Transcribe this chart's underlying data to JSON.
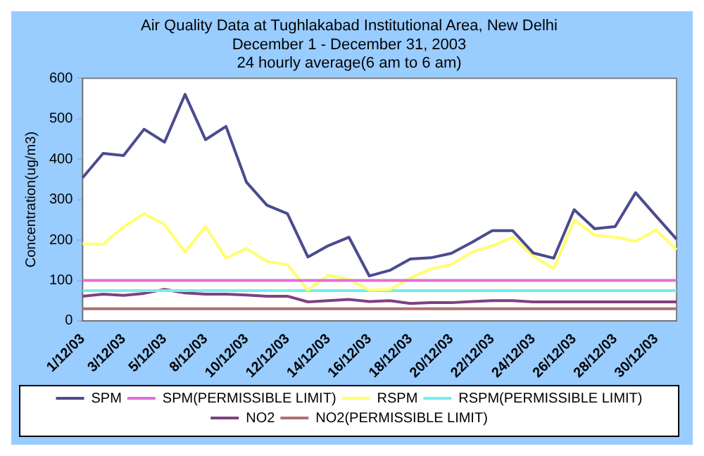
{
  "chart_data": {
    "type": "line",
    "title": "Air Quality Data at Tughlakabad Institutional Area, New Delhi",
    "subtitle": "December 1 - December 31, 2003\n24 hourly average(6 am to 6 am)",
    "ylabel": "Concentration(ug/m3)",
    "categories": [
      "1/12/03",
      null,
      "3/12/03",
      null,
      "5/12/03",
      null,
      "8/12/03",
      null,
      "10/12/03",
      null,
      "12/12/03",
      null,
      "14/12/03",
      null,
      "16/12/03",
      null,
      "18/12/03",
      null,
      "20/12/03",
      null,
      "22/12/03",
      null,
      "24/12/03",
      null,
      "26/12/03",
      null,
      "28/12/03",
      null,
      "30/12/03",
      null
    ],
    "series": [
      {
        "name": "SPM",
        "color": "#4b4b8f",
        "values": [
          354,
          414,
          409,
          474,
          442,
          560,
          448,
          481,
          343,
          286,
          265,
          158,
          186,
          207,
          111,
          125,
          153,
          156,
          167,
          194,
          223,
          223,
          168,
          155,
          275,
          228,
          233,
          317,
          259,
          202
        ]
      },
      {
        "name": "SPM(PERMISSIBLE LIMIT)",
        "color": "#e070d8",
        "values": [
          100,
          100,
          100,
          100,
          100,
          100,
          100,
          100,
          100,
          100,
          100,
          100,
          100,
          100,
          100,
          100,
          100,
          100,
          100,
          100,
          100,
          100,
          100,
          100,
          100,
          100,
          100,
          100,
          100,
          100
        ]
      },
      {
        "name": "RSPM",
        "color": "#ffff70",
        "values": [
          191,
          189,
          233,
          265,
          238,
          170,
          233,
          155,
          179,
          147,
          139,
          76,
          113,
          103,
          76,
          78,
          106,
          129,
          139,
          170,
          186,
          207,
          160,
          129,
          249,
          212,
          207,
          197,
          225,
          176
        ]
      },
      {
        "name": "RSPM(PERMISSIBLE LIMIT)",
        "color": "#70f0f0",
        "values": [
          75,
          75,
          75,
          75,
          75,
          75,
          75,
          75,
          75,
          75,
          75,
          75,
          75,
          75,
          75,
          75,
          75,
          75,
          75,
          75,
          75,
          75,
          75,
          75,
          75,
          75,
          75,
          75,
          75,
          75
        ]
      },
      {
        "name": "NO2",
        "color": "#804080",
        "values": [
          61,
          66,
          63,
          68,
          78,
          69,
          66,
          66,
          64,
          61,
          61,
          47,
          50,
          53,
          48,
          50,
          43,
          45,
          45,
          48,
          50,
          50,
          47,
          47,
          47,
          47,
          47,
          47,
          47,
          47
        ]
      },
      {
        "name": "NO2(PERMISSIBLE LIMIT)",
        "color": "#b07070",
        "values": [
          30,
          30,
          30,
          30,
          30,
          30,
          30,
          30,
          30,
          30,
          30,
          30,
          30,
          30,
          30,
          30,
          30,
          30,
          30,
          30,
          30,
          30,
          30,
          30,
          30,
          30,
          30,
          30,
          30,
          30
        ]
      }
    ],
    "ylim": [
      0,
      600
    ],
    "yticks": [
      0,
      100,
      200,
      300,
      400,
      500,
      600
    ],
    "grid": false,
    "legend": "bottom",
    "marker": "none",
    "line_style": "solid"
  }
}
